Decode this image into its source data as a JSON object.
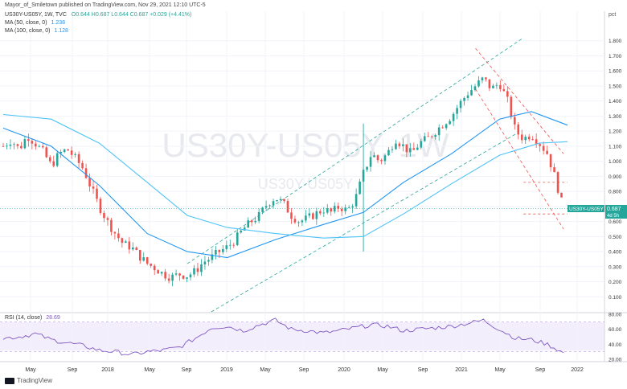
{
  "header": {
    "published": "Mayor_of_Smiletown published on TradingView.com, Nov 29, 2021 12:10 UTC-5",
    "symbol_line": "US30Y-US05Y, 1W, TVC",
    "ohlc": "O0.644 H0.687 L0.644 C0.687 +0.029 (+4.41%)",
    "ma50_label": "MA (50, close, 0)",
    "ma50_value": "1.238",
    "ma100_label": "MA (100, close, 0)",
    "ma100_value": "1.128",
    "rsi_label": "RSI (14, close)",
    "rsi_value": "28.69"
  },
  "watermark": {
    "big": "US30Y-US05Y, 1W",
    "small": "US30Y-US05Y"
  },
  "price_tag": {
    "symbol": "US30Y-US05Y",
    "value": "0.687",
    "countdown": "4d 5h"
  },
  "footer": {
    "brand": "TradingView"
  },
  "colors": {
    "up": "#26a69a",
    "down": "#ef5350",
    "ma50": "#2196f3",
    "ma100": "#4fc3f7",
    "channel": "#26a69a",
    "bear": "#ef5350",
    "rsi": "#7e57c2",
    "rsi_band": "#ede7f6"
  },
  "chart_data": {
    "type": "candlestick",
    "axis_unit": "pct",
    "ylim": [
      0,
      1.9
    ],
    "yticks": [
      0.1,
      0.2,
      0.3,
      0.4,
      0.5,
      0.6,
      0.7,
      0.8,
      0.9,
      1.0,
      1.1,
      1.2,
      1.3,
      1.4,
      1.5,
      1.6,
      1.7,
      1.8
    ],
    "ytick_labels": [
      "0.100",
      "0.200",
      "0.300",
      "0.400",
      "0.500",
      "0.600",
      "0.700",
      "0.800",
      "0.900",
      "1.000",
      "1.100",
      "1.200",
      "1.300",
      "1.400",
      "1.500",
      "1.600",
      "1.700",
      "1.800"
    ],
    "xticks": [
      "May",
      "Sep",
      "2018",
      "May",
      "Sep",
      "2019",
      "May",
      "Sep",
      "2020",
      "May",
      "Sep",
      "2021",
      "May",
      "Sep",
      "2022"
    ],
    "close_series": [
      [
        0,
        1.1
      ],
      [
        10,
        1.14
      ],
      [
        20,
        1.08
      ],
      [
        30,
        1.17
      ],
      [
        40,
        1.12
      ],
      [
        50,
        1.06
      ],
      [
        60,
        0.97
      ],
      [
        70,
        1.05
      ],
      [
        80,
        1.08
      ],
      [
        90,
        1.02
      ],
      [
        100,
        0.95
      ],
      [
        110,
        0.82
      ],
      [
        120,
        0.7
      ],
      [
        130,
        0.6
      ],
      [
        140,
        0.52
      ],
      [
        150,
        0.45
      ],
      [
        160,
        0.43
      ],
      [
        170,
        0.37
      ],
      [
        180,
        0.32
      ],
      [
        190,
        0.29
      ],
      [
        200,
        0.25
      ],
      [
        210,
        0.23
      ],
      [
        220,
        0.25
      ],
      [
        230,
        0.24
      ],
      [
        240,
        0.27
      ],
      [
        250,
        0.33
      ],
      [
        260,
        0.36
      ],
      [
        270,
        0.4
      ],
      [
        280,
        0.43
      ],
      [
        290,
        0.48
      ],
      [
        300,
        0.55
      ],
      [
        310,
        0.6
      ],
      [
        320,
        0.64
      ],
      [
        330,
        0.72
      ],
      [
        340,
        0.76
      ],
      [
        350,
        0.72
      ],
      [
        360,
        0.64
      ],
      [
        370,
        0.6
      ],
      [
        380,
        0.62
      ],
      [
        390,
        0.65
      ],
      [
        400,
        0.68
      ],
      [
        410,
        0.66
      ],
      [
        420,
        0.7
      ],
      [
        430,
        0.67
      ],
      [
        440,
        0.75
      ],
      [
        450,
        0.92
      ],
      [
        460,
        1.05
      ],
      [
        470,
        1.0
      ],
      [
        480,
        1.05
      ],
      [
        490,
        1.15
      ],
      [
        500,
        1.1
      ],
      [
        510,
        1.05
      ],
      [
        520,
        1.12
      ],
      [
        530,
        1.15
      ],
      [
        540,
        1.2
      ],
      [
        550,
        1.25
      ],
      [
        560,
        1.3
      ],
      [
        570,
        1.38
      ],
      [
        580,
        1.45
      ],
      [
        590,
        1.5
      ],
      [
        600,
        1.55
      ],
      [
        610,
        1.48
      ],
      [
        620,
        1.52
      ],
      [
        630,
        1.4
      ],
      [
        640,
        1.2
      ],
      [
        650,
        1.15
      ],
      [
        660,
        1.18
      ],
      [
        670,
        1.12
      ],
      [
        680,
        1.05
      ],
      [
        690,
        0.88
      ],
      [
        700,
        0.68
      ]
    ],
    "ma50": [
      [
        0,
        1.22
      ],
      [
        60,
        1.1
      ],
      [
        120,
        0.84
      ],
      [
        180,
        0.52
      ],
      [
        230,
        0.4
      ],
      [
        280,
        0.36
      ],
      [
        340,
        0.48
      ],
      [
        400,
        0.58
      ],
      [
        450,
        0.66
      ],
      [
        500,
        0.86
      ],
      [
        560,
        1.05
      ],
      [
        620,
        1.28
      ],
      [
        660,
        1.33
      ],
      [
        705,
        1.24
      ]
    ],
    "ma100": [
      [
        0,
        1.31
      ],
      [
        60,
        1.28
      ],
      [
        120,
        1.12
      ],
      [
        180,
        0.86
      ],
      [
        230,
        0.64
      ],
      [
        280,
        0.56
      ],
      [
        340,
        0.52
      ],
      [
        400,
        0.49
      ],
      [
        450,
        0.5
      ],
      [
        500,
        0.65
      ],
      [
        560,
        0.85
      ],
      [
        620,
        1.04
      ],
      [
        670,
        1.12
      ],
      [
        705,
        1.13
      ]
    ],
    "rsi": {
      "ylim": [
        20,
        80
      ],
      "yticks": [
        "80.00",
        "60.00",
        "40.00",
        "20.00"
      ],
      "overbought": 70,
      "oversold": 30,
      "values": [
        [
          0,
          48
        ],
        [
          20,
          50
        ],
        [
          40,
          54
        ],
        [
          60,
          46
        ],
        [
          80,
          42
        ],
        [
          100,
          38
        ],
        [
          120,
          32
        ],
        [
          140,
          30
        ],
        [
          160,
          26
        ],
        [
          180,
          30
        ],
        [
          200,
          32
        ],
        [
          220,
          36
        ],
        [
          240,
          48
        ],
        [
          260,
          62
        ],
        [
          280,
          64
        ],
        [
          300,
          58
        ],
        [
          320,
          66
        ],
        [
          340,
          72
        ],
        [
          360,
          60
        ],
        [
          380,
          58
        ],
        [
          400,
          55
        ],
        [
          420,
          58
        ],
        [
          440,
          62
        ],
        [
          460,
          66
        ],
        [
          480,
          64
        ],
        [
          500,
          58
        ],
        [
          520,
          60
        ],
        [
          540,
          62
        ],
        [
          560,
          64
        ],
        [
          580,
          68
        ],
        [
          600,
          72
        ],
        [
          620,
          60
        ],
        [
          640,
          48
        ],
        [
          660,
          46
        ],
        [
          680,
          40
        ],
        [
          700,
          28.69
        ]
      ]
    }
  }
}
